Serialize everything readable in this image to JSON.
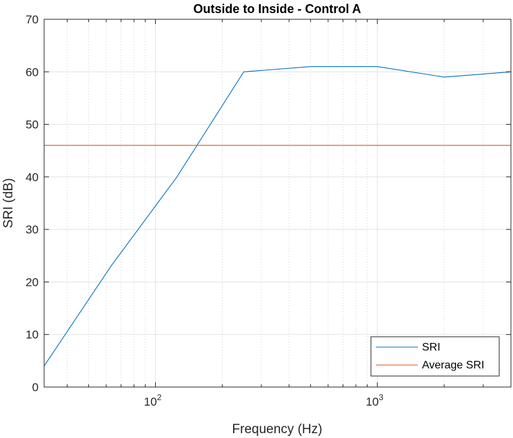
{
  "chart_data": {
    "type": "line",
    "title": "Outside to Inside - Control A",
    "xlabel": "Frequency (Hz)",
    "ylabel": "SRI (dB)",
    "xscale": "log",
    "xlim": [
      31.5,
      4000
    ],
    "ylim": [
      0,
      70
    ],
    "yticks": [
      0,
      10,
      20,
      30,
      40,
      50,
      60,
      70
    ],
    "xticks": [
      {
        "value": 100,
        "base": "10",
        "exp": "2"
      },
      {
        "value": 1000,
        "base": "10",
        "exp": "3"
      }
    ],
    "grid": true,
    "legend_location": "bottom-right",
    "series": [
      {
        "name": "SRI",
        "color": "#0072BD",
        "x": [
          31.5,
          63,
          125,
          250,
          500,
          1000,
          2000,
          4000
        ],
        "y": [
          4,
          23,
          40,
          60,
          61,
          61,
          59,
          60
        ]
      },
      {
        "name": "Average SRI",
        "color": "#D95319",
        "x": [
          31.5,
          4000
        ],
        "y": [
          46,
          46
        ]
      }
    ]
  }
}
